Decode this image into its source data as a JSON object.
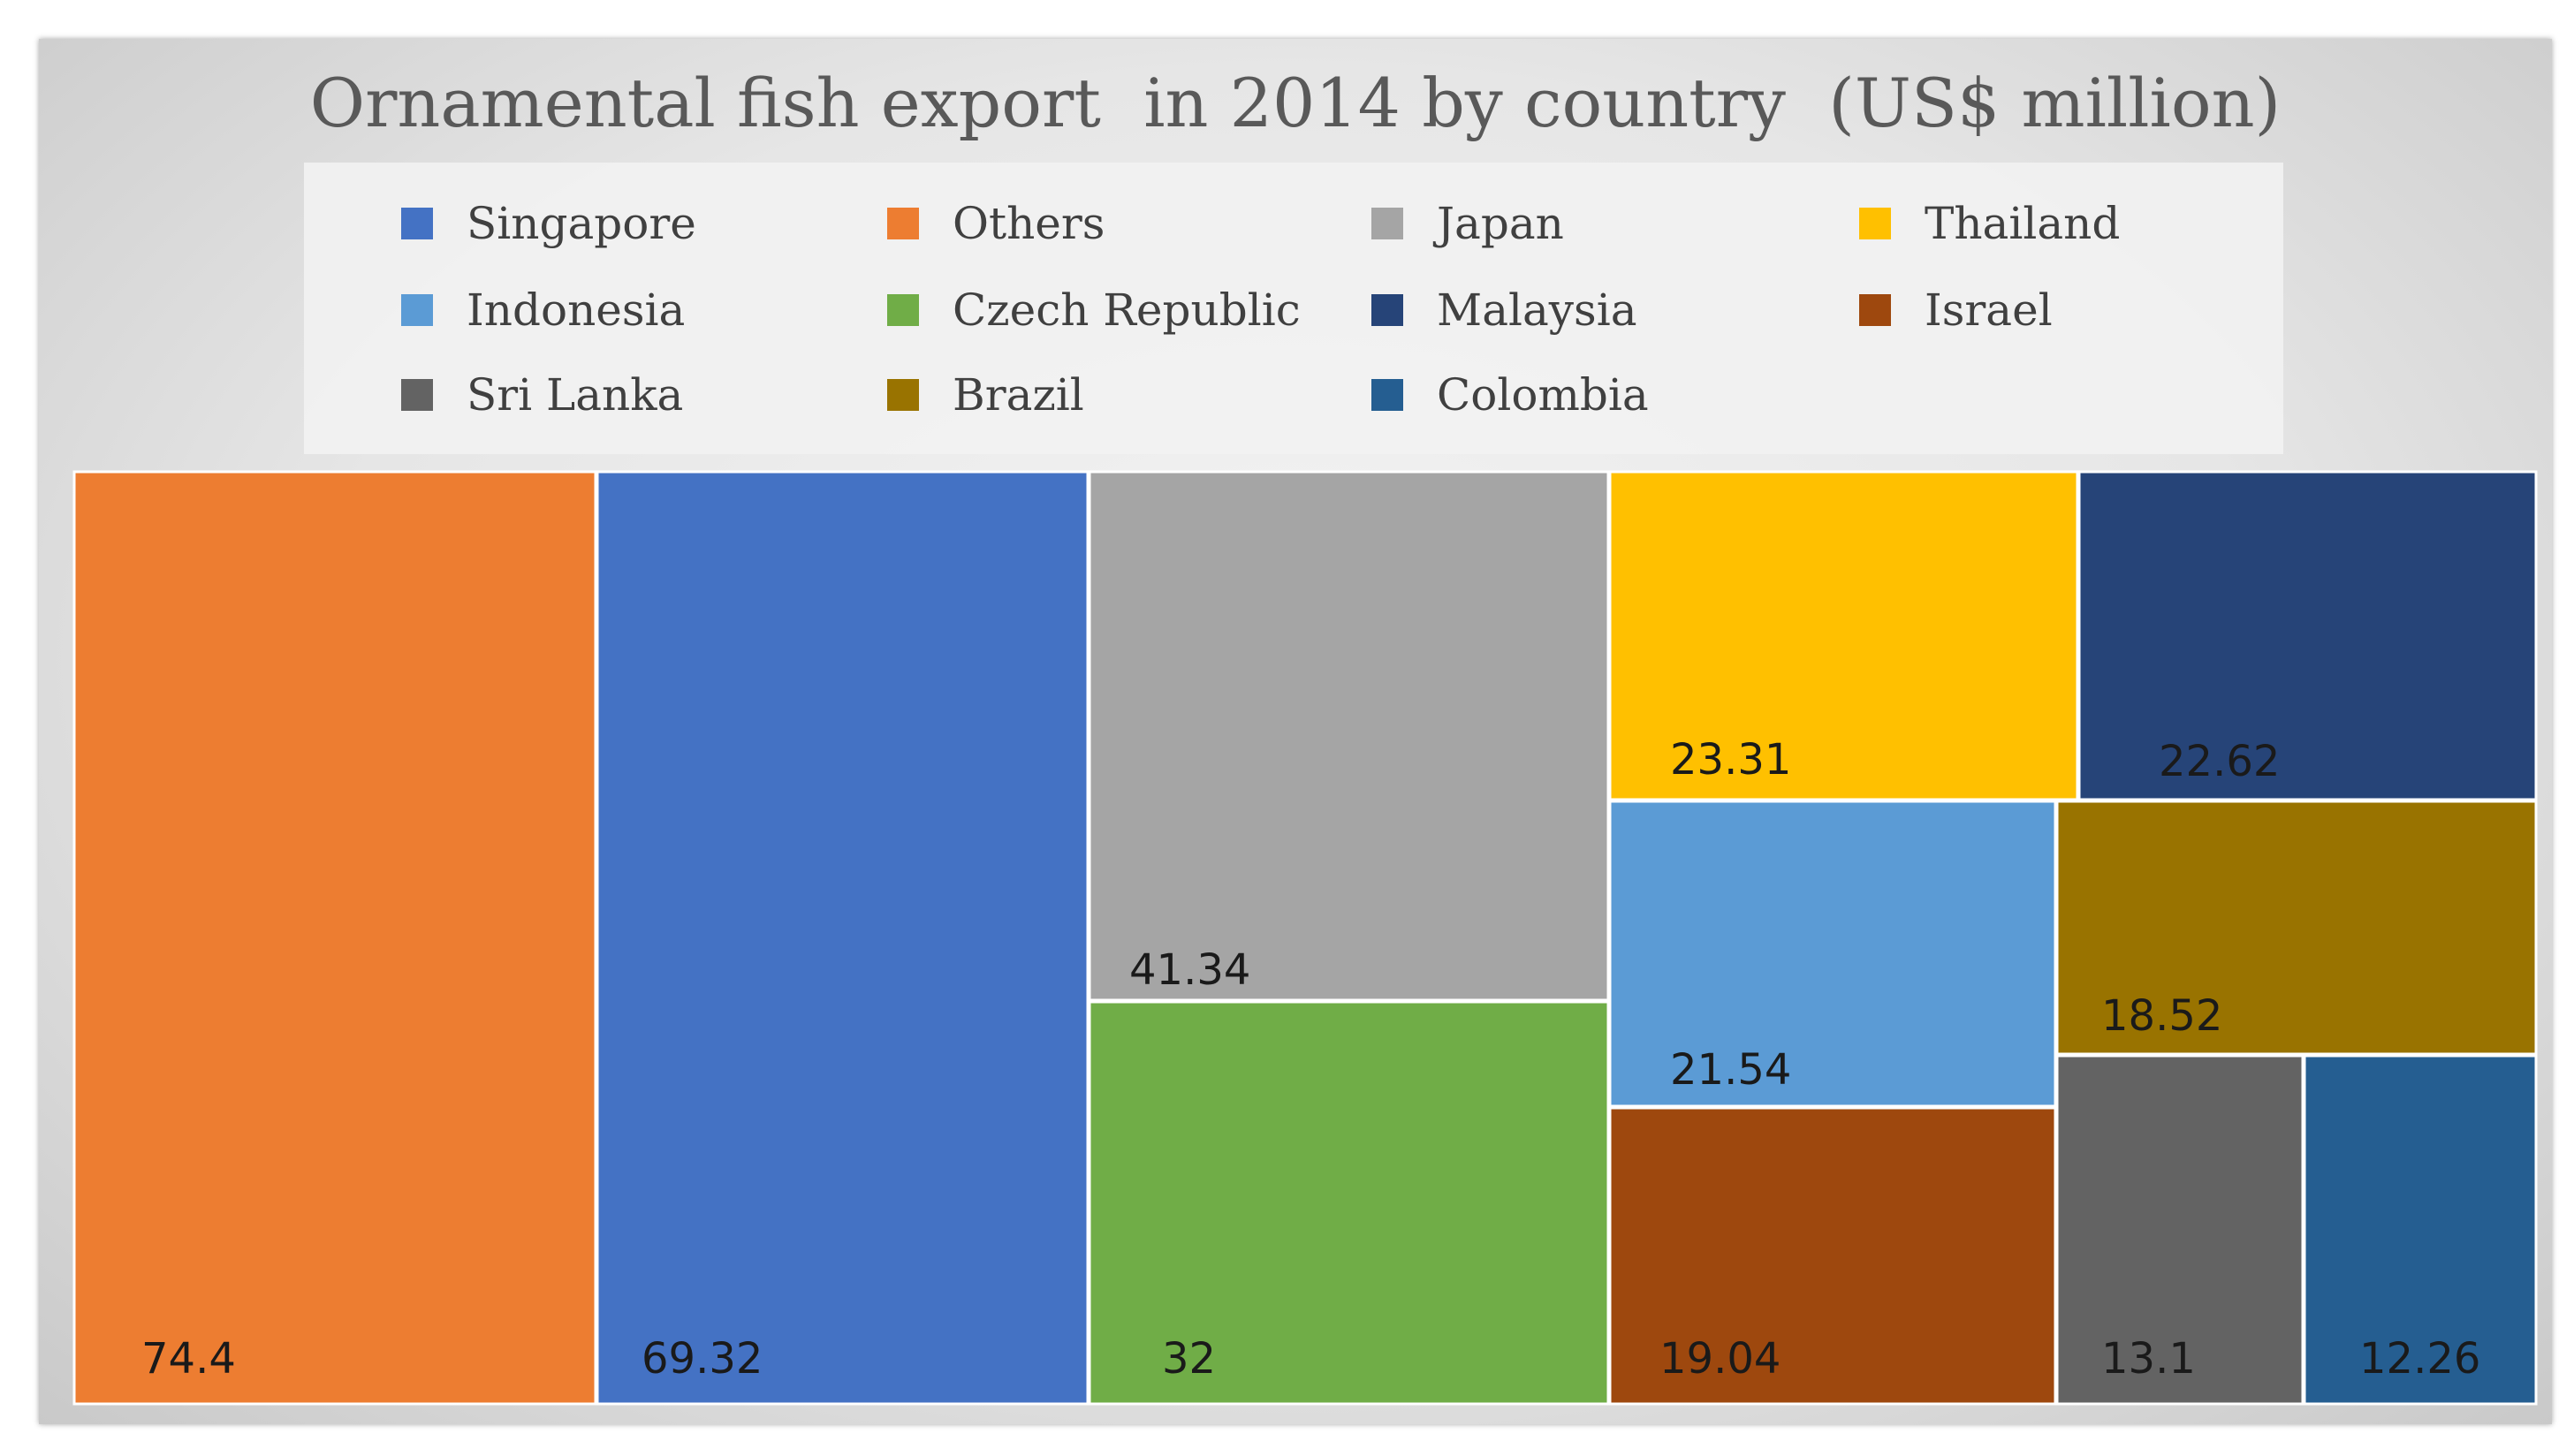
{
  "chart_data": {
    "type": "treemap",
    "title": "Ornamental fish export  in 2014 by country  (US$ million)",
    "legend_position": "top",
    "legend": [
      {
        "name": "Singapore",
        "color": "#4472C4"
      },
      {
        "name": "Others",
        "color": "#ED7D31"
      },
      {
        "name": "Japan",
        "color": "#A5A5A5"
      },
      {
        "name": "Thailand",
        "color": "#FFC000"
      },
      {
        "name": "Indonesia",
        "color": "#5B9BD5"
      },
      {
        "name": "Czech Republic",
        "color": "#70AD47"
      },
      {
        "name": "Malaysia",
        "color": "#264478"
      },
      {
        "name": "Israel",
        "color": "#9E480E"
      },
      {
        "name": "Sri Lanka",
        "color": "#636363"
      },
      {
        "name": "Brazil",
        "color": "#997300"
      },
      {
        "name": "Colombia",
        "color": "#255E91"
      }
    ],
    "items": [
      {
        "name": "Others",
        "value": 74.4,
        "label": "74.4",
        "color": "#ED7D31"
      },
      {
        "name": "Singapore",
        "value": 69.32,
        "label": "69.32",
        "color": "#4472C4"
      },
      {
        "name": "Japan",
        "value": 41.34,
        "label": "41.34",
        "color": "#A5A5A5"
      },
      {
        "name": "Czech Republic",
        "value": 32,
        "label": "32",
        "color": "#70AD47"
      },
      {
        "name": "Thailand",
        "value": 23.31,
        "label": "23.31",
        "color": "#FFC000"
      },
      {
        "name": "Malaysia",
        "value": 22.62,
        "label": "22.62",
        "color": "#264478"
      },
      {
        "name": "Indonesia",
        "value": 21.54,
        "label": "21.54",
        "color": "#5B9BD5"
      },
      {
        "name": "Israel",
        "value": 19.04,
        "label": "19.04",
        "color": "#9E480E"
      },
      {
        "name": "Brazil",
        "value": 18.52,
        "label": "18.52",
        "color": "#997300"
      },
      {
        "name": "Sri Lanka",
        "value": 13.1,
        "label": "13.1",
        "color": "#636363"
      },
      {
        "name": "Colombia",
        "value": 12.26,
        "label": "12.26",
        "color": "#255E91"
      }
    ]
  }
}
